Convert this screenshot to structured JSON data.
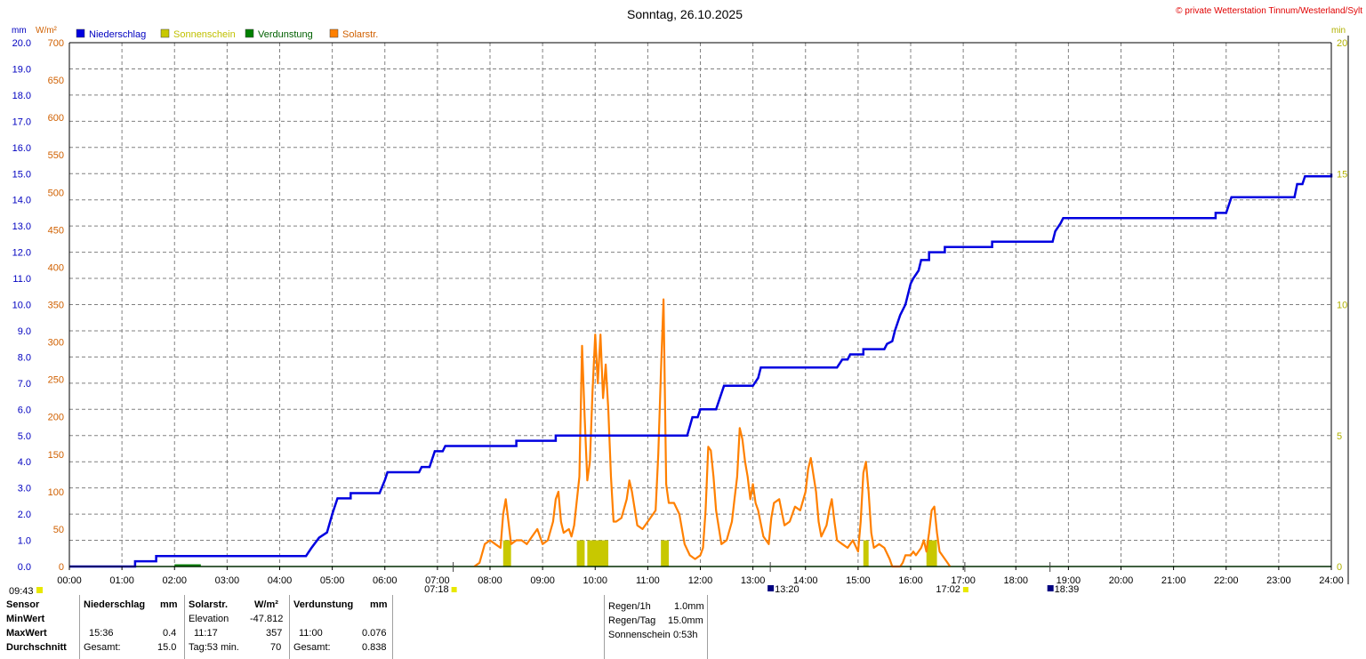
{
  "header": {
    "title": "Sonntag, 26.10.2025",
    "copyright": "© private Wetterstation Tinnum/Westerland/Sylt",
    "unit_left_mm": "mm",
    "unit_left_w": "W/m²",
    "unit_right": "min"
  },
  "colors": {
    "niederschlag": "#0000E0",
    "sonnenschein": "#C8C800",
    "verdunstung": "#008000",
    "solar": "#FF8000",
    "grid": "#808080"
  },
  "legend": [
    "Niederschlag",
    "Sonnenschein",
    "Verdunstung",
    "Solarstr."
  ],
  "chart_data": {
    "type": "line",
    "title": "Sonntag, 26.10.2025",
    "x_ticks": [
      "00:00",
      "01:00",
      "02:00",
      "03:00",
      "04:00",
      "05:00",
      "06:00",
      "07:00",
      "08:00",
      "09:00",
      "10:00",
      "11:00",
      "12:00",
      "13:00",
      "14:00",
      "15:00",
      "16:00",
      "17:00",
      "18:00",
      "19:00",
      "20:00",
      "21:00",
      "22:00",
      "23:00",
      "24:00"
    ],
    "xlim_hours": [
      0,
      24
    ],
    "y_left_mm_ticks": [
      "0.0",
      "1.0",
      "2.0",
      "3.0",
      "4.0",
      "5.0",
      "6.0",
      "7.0",
      "8.0",
      "9.0",
      "10.0",
      "11.0",
      "12.0",
      "13.0",
      "14.0",
      "15.0",
      "16.0",
      "17.0",
      "18.0",
      "19.0",
      "20.0"
    ],
    "y_left_w_ticks": [
      "0",
      "50",
      "100",
      "150",
      "200",
      "250",
      "300",
      "350",
      "400",
      "450",
      "500",
      "550",
      "600",
      "650",
      "700"
    ],
    "y_right_ticks": [
      "0",
      "5",
      "10",
      "15",
      "20"
    ],
    "ylim_mm": [
      0,
      20
    ],
    "ylim_w": [
      0,
      700
    ],
    "ylim_min": [
      0,
      20
    ],
    "grid": true,
    "series": [
      {
        "name": "Niederschlag",
        "unit": "mm",
        "style": "step",
        "points": [
          [
            0,
            0
          ],
          [
            1.25,
            0
          ],
          [
            1.25,
            0.2
          ],
          [
            1.65,
            0.2
          ],
          [
            1.65,
            0.4
          ],
          [
            4.5,
            0.4
          ],
          [
            4.6,
            0.7
          ],
          [
            4.75,
            1.1
          ],
          [
            4.9,
            1.3
          ],
          [
            5.0,
            2.0
          ],
          [
            5.1,
            2.6
          ],
          [
            5.35,
            2.6
          ],
          [
            5.35,
            2.8
          ],
          [
            5.9,
            2.8
          ],
          [
            6.0,
            3.3
          ],
          [
            6.05,
            3.6
          ],
          [
            6.65,
            3.6
          ],
          [
            6.7,
            3.8
          ],
          [
            6.85,
            3.8
          ],
          [
            6.95,
            4.4
          ],
          [
            7.1,
            4.4
          ],
          [
            7.15,
            4.6
          ],
          [
            8.5,
            4.6
          ],
          [
            8.5,
            4.8
          ],
          [
            9.25,
            4.8
          ],
          [
            9.25,
            5.0
          ],
          [
            11.75,
            5.0
          ],
          [
            11.85,
            5.7
          ],
          [
            11.95,
            5.7
          ],
          [
            12.0,
            6.0
          ],
          [
            12.3,
            6.0
          ],
          [
            12.45,
            6.9
          ],
          [
            13.0,
            6.9
          ],
          [
            13.1,
            7.2
          ],
          [
            13.15,
            7.6
          ],
          [
            14.6,
            7.6
          ],
          [
            14.7,
            7.9
          ],
          [
            14.8,
            7.9
          ],
          [
            14.85,
            8.1
          ],
          [
            15.1,
            8.1
          ],
          [
            15.1,
            8.3
          ],
          [
            15.5,
            8.3
          ],
          [
            15.55,
            8.5
          ],
          [
            15.65,
            8.6
          ],
          [
            15.7,
            9.0
          ],
          [
            15.8,
            9.6
          ],
          [
            15.9,
            10.0
          ],
          [
            16.0,
            10.8
          ],
          [
            16.05,
            11.0
          ],
          [
            16.15,
            11.3
          ],
          [
            16.2,
            11.7
          ],
          [
            16.35,
            11.7
          ],
          [
            16.35,
            12.0
          ],
          [
            16.65,
            12.0
          ],
          [
            16.65,
            12.2
          ],
          [
            17.55,
            12.2
          ],
          [
            17.55,
            12.4
          ],
          [
            18.7,
            12.4
          ],
          [
            18.75,
            12.8
          ],
          [
            18.85,
            13.1
          ],
          [
            18.9,
            13.3
          ],
          [
            21.8,
            13.3
          ],
          [
            21.8,
            13.5
          ],
          [
            22.0,
            13.5
          ],
          [
            22.05,
            13.8
          ],
          [
            22.1,
            14.1
          ],
          [
            23.3,
            14.1
          ],
          [
            23.35,
            14.6
          ],
          [
            23.45,
            14.6
          ],
          [
            23.5,
            14.9
          ],
          [
            24.0,
            14.9
          ],
          [
            24.0,
            15.0
          ]
        ]
      },
      {
        "name": "Solarstr.",
        "unit": "W/m²",
        "style": "line",
        "points": [
          [
            7.7,
            0
          ],
          [
            7.8,
            5
          ],
          [
            7.9,
            30
          ],
          [
            8.0,
            35
          ],
          [
            8.1,
            30
          ],
          [
            8.2,
            25
          ],
          [
            8.25,
            70
          ],
          [
            8.3,
            90
          ],
          [
            8.35,
            60
          ],
          [
            8.4,
            30
          ],
          [
            8.5,
            35
          ],
          [
            8.6,
            35
          ],
          [
            8.7,
            30
          ],
          [
            8.8,
            40
          ],
          [
            8.9,
            50
          ],
          [
            9.0,
            30
          ],
          [
            9.1,
            35
          ],
          [
            9.2,
            60
          ],
          [
            9.25,
            90
          ],
          [
            9.3,
            100
          ],
          [
            9.35,
            60
          ],
          [
            9.4,
            45
          ],
          [
            9.5,
            50
          ],
          [
            9.55,
            40
          ],
          [
            9.6,
            55
          ],
          [
            9.7,
            120
          ],
          [
            9.75,
            295
          ],
          [
            9.8,
            200
          ],
          [
            9.85,
            115
          ],
          [
            9.9,
            140
          ],
          [
            9.95,
            235
          ],
          [
            10.0,
            310
          ],
          [
            10.05,
            245
          ],
          [
            10.1,
            310
          ],
          [
            10.15,
            225
          ],
          [
            10.2,
            270
          ],
          [
            10.25,
            210
          ],
          [
            10.3,
            120
          ],
          [
            10.35,
            60
          ],
          [
            10.4,
            60
          ],
          [
            10.5,
            65
          ],
          [
            10.6,
            90
          ],
          [
            10.65,
            115
          ],
          [
            10.7,
            100
          ],
          [
            10.8,
            55
          ],
          [
            10.9,
            50
          ],
          [
            11.0,
            60
          ],
          [
            11.1,
            70
          ],
          [
            11.15,
            75
          ],
          [
            11.2,
            150
          ],
          [
            11.25,
            260
          ],
          [
            11.3,
            357
          ],
          [
            11.35,
            110
          ],
          [
            11.4,
            85
          ],
          [
            11.5,
            85
          ],
          [
            11.6,
            70
          ],
          [
            11.7,
            30
          ],
          [
            11.8,
            15
          ],
          [
            11.9,
            10
          ],
          [
            12.0,
            15
          ],
          [
            12.05,
            25
          ],
          [
            12.1,
            75
          ],
          [
            12.15,
            160
          ],
          [
            12.2,
            155
          ],
          [
            12.25,
            120
          ],
          [
            12.3,
            75
          ],
          [
            12.4,
            30
          ],
          [
            12.5,
            35
          ],
          [
            12.6,
            60
          ],
          [
            12.65,
            90
          ],
          [
            12.7,
            120
          ],
          [
            12.75,
            185
          ],
          [
            12.8,
            170
          ],
          [
            12.85,
            140
          ],
          [
            12.9,
            120
          ],
          [
            12.95,
            90
          ],
          [
            13.0,
            110
          ],
          [
            13.05,
            85
          ],
          [
            13.1,
            75
          ],
          [
            13.2,
            40
          ],
          [
            13.3,
            30
          ],
          [
            13.35,
            65
          ],
          [
            13.4,
            85
          ],
          [
            13.5,
            90
          ],
          [
            13.6,
            55
          ],
          [
            13.7,
            60
          ],
          [
            13.8,
            80
          ],
          [
            13.9,
            75
          ],
          [
            14.0,
            100
          ],
          [
            14.05,
            130
          ],
          [
            14.1,
            145
          ],
          [
            14.2,
            100
          ],
          [
            14.25,
            60
          ],
          [
            14.3,
            40
          ],
          [
            14.4,
            55
          ],
          [
            14.45,
            75
          ],
          [
            14.5,
            90
          ],
          [
            14.55,
            60
          ],
          [
            14.6,
            35
          ],
          [
            14.7,
            30
          ],
          [
            14.8,
            25
          ],
          [
            14.9,
            35
          ],
          [
            15.0,
            20
          ],
          [
            15.05,
            60
          ],
          [
            15.1,
            125
          ],
          [
            15.15,
            140
          ],
          [
            15.2,
            100
          ],
          [
            15.25,
            45
          ],
          [
            15.3,
            25
          ],
          [
            15.4,
            30
          ],
          [
            15.5,
            25
          ],
          [
            15.6,
            10
          ],
          [
            15.65,
            0
          ],
          [
            15.8,
            0
          ],
          [
            15.85,
            5
          ],
          [
            15.9,
            15
          ],
          [
            16.0,
            15
          ],
          [
            16.05,
            20
          ],
          [
            16.1,
            15
          ],
          [
            16.2,
            25
          ],
          [
            16.25,
            35
          ],
          [
            16.3,
            20
          ],
          [
            16.35,
            45
          ],
          [
            16.4,
            75
          ],
          [
            16.45,
            80
          ],
          [
            16.5,
            45
          ],
          [
            16.55,
            20
          ],
          [
            16.6,
            15
          ],
          [
            16.7,
            5
          ],
          [
            16.75,
            0
          ]
        ]
      },
      {
        "name": "Sonnenschein",
        "unit": "min",
        "style": "bars",
        "bars": [
          [
            8.25,
            8.4,
            1
          ],
          [
            9.65,
            9.8,
            1
          ],
          [
            9.85,
            10.25,
            1
          ],
          [
            11.25,
            11.4,
            1
          ],
          [
            15.1,
            15.2,
            1
          ],
          [
            16.3,
            16.5,
            1
          ]
        ]
      },
      {
        "name": "Verdunstung",
        "unit": "mm",
        "style": "bars",
        "bars": [
          [
            2.0,
            2.5,
            0.05
          ]
        ]
      }
    ],
    "markers": [
      {
        "time": 7.3,
        "label": "07:18"
      },
      {
        "time": 13.33,
        "label": "13:20"
      },
      {
        "time": 17.03,
        "label": "17:02"
      },
      {
        "time": 18.65,
        "label": "18:39"
      }
    ],
    "current_time_label": "09:43"
  },
  "stats": {
    "row_labels": [
      "Sensor",
      "MinWert",
      "MaxWert",
      "Durchschnitt"
    ],
    "niederschlag": {
      "header": "Niederschlag",
      "unit": "mm",
      "max_time": "15:36",
      "max_value": "0.4",
      "avg_label": "Gesamt:",
      "avg_value": "15.0"
    },
    "solar": {
      "header": "Solarstr.",
      "unit": "W/m²",
      "min_label": "Elevation",
      "min_value": "-47.812",
      "max_time": "11:17",
      "max_value": "357",
      "avg_label": "Tag:53 min.",
      "avg_value": "70"
    },
    "verdunstung": {
      "header": "Verdunstung",
      "unit": "mm",
      "max_time": "11:00",
      "max_value": "0.076",
      "avg_label": "Gesamt:",
      "avg_value": "0.838"
    },
    "extra": [
      {
        "label": "Regen/1h",
        "value": "1.0mm"
      },
      {
        "label": "Regen/Tag",
        "value": "15.0mm"
      },
      {
        "label": "Sonnenschein",
        "value": "0:53h"
      }
    ]
  }
}
